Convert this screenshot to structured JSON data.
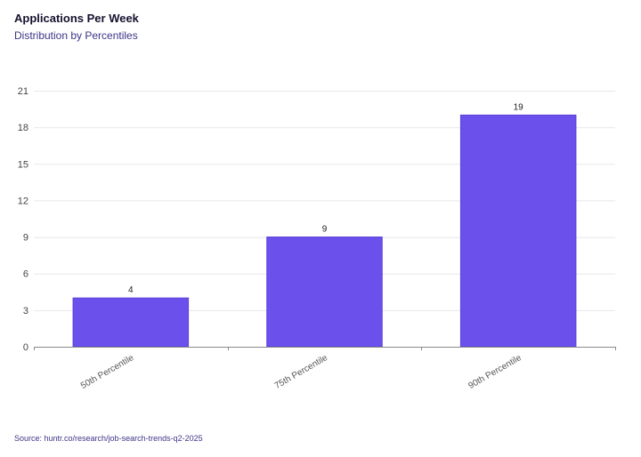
{
  "header": {
    "title": "Applications Per Week",
    "subtitle": "Distribution by Percentiles"
  },
  "footer": {
    "source": "Source: huntr.co/research/job-search-trends-q2-2025"
  },
  "colors": {
    "bar": "#6b50ec",
    "bar_border": "#5a3fd8"
  },
  "chart_data": {
    "type": "bar",
    "categories": [
      "50th Percentile",
      "75th Percentile",
      "90th Percentile"
    ],
    "values": [
      4,
      9,
      19
    ],
    "data_labels": [
      "4",
      "9",
      "19"
    ],
    "ylim": [
      0,
      21
    ],
    "yticks": [
      0,
      3,
      6,
      9,
      12,
      15,
      18,
      21
    ],
    "grid": true,
    "legend": "none"
  }
}
